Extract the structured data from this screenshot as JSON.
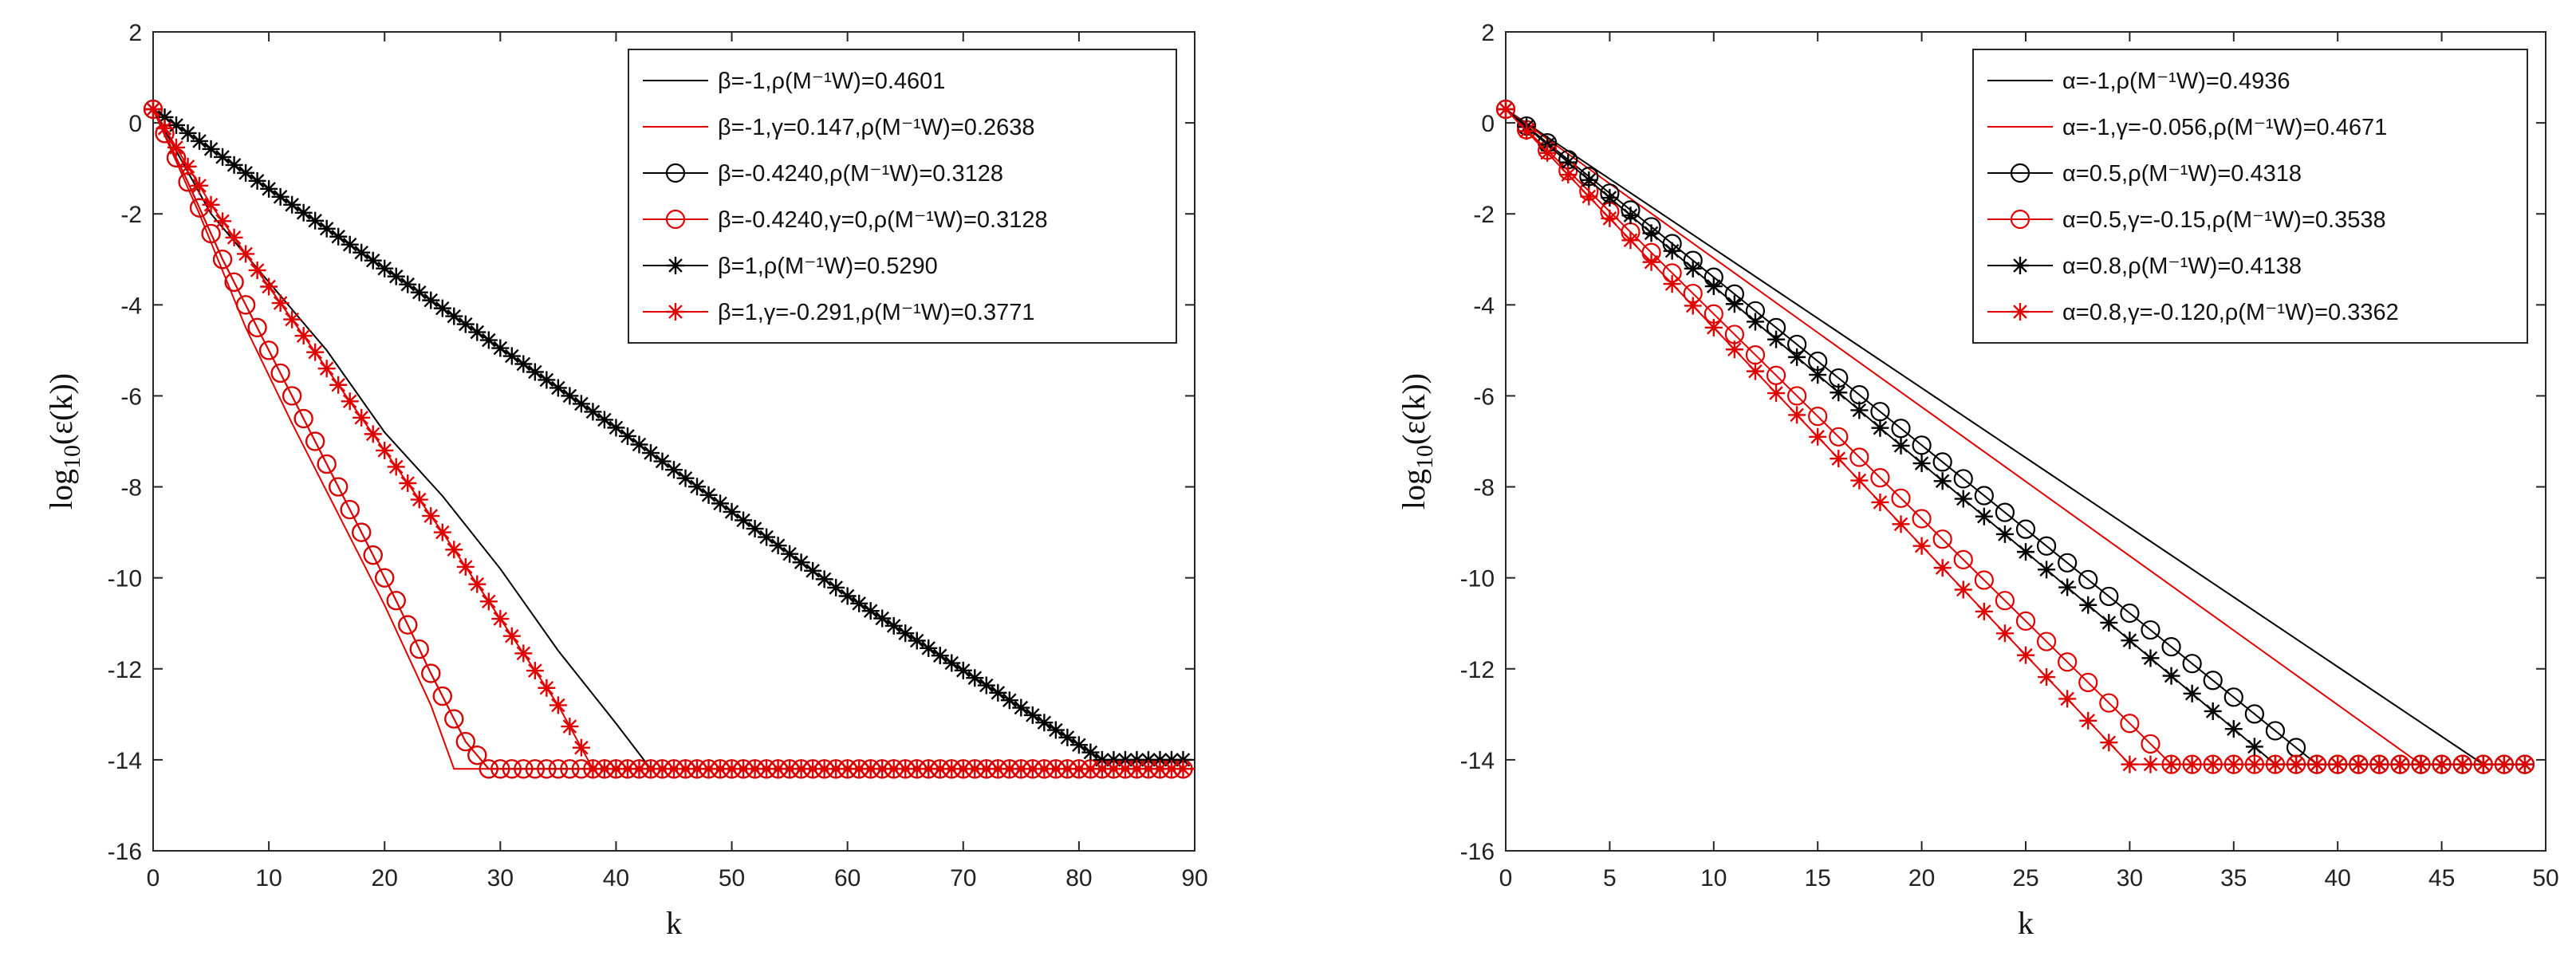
{
  "chart_data": [
    {
      "type": "line",
      "title": "",
      "xlabel": "k",
      "ylabel": "log10(ε(k))",
      "ylabel_main": "log",
      "ylabel_sub": "10",
      "ylabel_rest": "(ε(k))",
      "xlim": [
        0,
        90
      ],
      "ylim": [
        -16,
        2
      ],
      "xticks": [
        "0",
        "10",
        "20",
        "30",
        "40",
        "50",
        "60",
        "70",
        "80",
        "90"
      ],
      "yticks": [
        "2",
        "0",
        "-2",
        "-4",
        "-6",
        "-8",
        "-10",
        "-12",
        "-14",
        "-16"
      ],
      "legend_position": "top-right",
      "series": [
        {
          "name": "β=-1,ρ(M⁻¹W)=0.4601",
          "color": "#000000",
          "marker": "none",
          "points": [
            [
              0,
              0.3
            ],
            [
              5,
              -2
            ],
            [
              10,
              -3.5
            ],
            [
              15,
              -5
            ],
            [
              20,
              -6.8
            ],
            [
              25,
              -8.2
            ],
            [
              30,
              -9.8
            ],
            [
              35,
              -11.6
            ],
            [
              40,
              -13.2
            ],
            [
              43,
              -14.2
            ],
            [
              90,
              -14.2
            ]
          ]
        },
        {
          "name": "β=-1,γ=0.147,ρ(M⁻¹W)=0.2638",
          "color": "#e00000",
          "marker": "none",
          "points": [
            [
              0,
              0.3
            ],
            [
              4,
              -2
            ],
            [
              8,
              -4.5
            ],
            [
              12,
              -6.6
            ],
            [
              16,
              -8.6
            ],
            [
              20,
              -10.6
            ],
            [
              24,
              -12.8
            ],
            [
              26,
              -14.2
            ],
            [
              90,
              -14.2
            ]
          ]
        },
        {
          "name": "β=-0.4240,ρ(M⁻¹W)=0.3128",
          "color": "#000000",
          "marker": "circle",
          "points": [
            [
              0,
              0.3
            ],
            [
              3,
              -1.3
            ],
            [
              6,
              -3
            ],
            [
              9,
              -4.5
            ],
            [
              12,
              -6
            ],
            [
              15,
              -7.5
            ],
            [
              18,
              -9
            ],
            [
              21,
              -10.5
            ],
            [
              24,
              -12.1
            ],
            [
              27,
              -13.6
            ],
            [
              29,
              -14.2
            ],
            [
              90,
              -14.2
            ]
          ]
        },
        {
          "name": "β=-0.4240,γ=0,ρ(M⁻¹W)=0.3128",
          "color": "#e00000",
          "marker": "circle",
          "points": [
            [
              0,
              0.3
            ],
            [
              3,
              -1.3
            ],
            [
              6,
              -3
            ],
            [
              9,
              -4.5
            ],
            [
              12,
              -6
            ],
            [
              15,
              -7.5
            ],
            [
              18,
              -9
            ],
            [
              21,
              -10.5
            ],
            [
              24,
              -12.1
            ],
            [
              27,
              -13.6
            ],
            [
              29,
              -14.2
            ],
            [
              90,
              -14.2
            ]
          ]
        },
        {
          "name": "β=1,ρ(M⁻¹W)=0.5290",
          "color": "#000000",
          "marker": "star",
          "points": [
            [
              0,
              0.3
            ],
            [
              20,
              -3.2
            ],
            [
              40,
              -6.7
            ],
            [
              60,
              -10.4
            ],
            [
              82,
              -14.0
            ],
            [
              90,
              -14.0
            ]
          ]
        },
        {
          "name": "β=1,γ=-0.291,ρ(M⁻¹W)=0.3771",
          "color": "#e00000",
          "marker": "star",
          "points": [
            [
              0,
              0.3
            ],
            [
              5,
              -1.8
            ],
            [
              10,
              -3.6
            ],
            [
              15,
              -5.4
            ],
            [
              20,
              -7.2
            ],
            [
              25,
              -9.0
            ],
            [
              30,
              -10.9
            ],
            [
              35,
              -12.8
            ],
            [
              38,
              -14.2
            ],
            [
              90,
              -14.2
            ]
          ]
        }
      ]
    },
    {
      "type": "line",
      "title": "",
      "xlabel": "k",
      "ylabel": "log10(ε(k))",
      "ylabel_main": "log",
      "ylabel_sub": "10",
      "ylabel_rest": "(ε(k))",
      "xlim": [
        0,
        50
      ],
      "ylim": [
        -16,
        2
      ],
      "xticks": [
        "0",
        "5",
        "10",
        "15",
        "20",
        "25",
        "30",
        "35",
        "40",
        "45",
        "50"
      ],
      "yticks": [
        "2",
        "0",
        "-2",
        "-4",
        "-6",
        "-8",
        "-10",
        "-12",
        "-14",
        "-16"
      ],
      "legend_position": "top-right",
      "series": [
        {
          "name": "α=-1,ρ(M⁻¹W)=0.4936",
          "color": "#000000",
          "marker": "none",
          "points": [
            [
              0,
              0.3
            ],
            [
              47,
              -14.1
            ],
            [
              49,
              -14.1
            ]
          ]
        },
        {
          "name": "α=-1,γ=-0.056,ρ(M⁻¹W)=0.4671",
          "color": "#e00000",
          "marker": "none",
          "points": [
            [
              0,
              0.3
            ],
            [
              44,
              -14.1
            ],
            [
              49,
              -14.1
            ]
          ]
        },
        {
          "name": "α=0.5,ρ(M⁻¹W)=0.4318",
          "color": "#000000",
          "marker": "circle",
          "points": [
            [
              0,
              0.3
            ],
            [
              39,
              -14.1
            ],
            [
              49,
              -14.1
            ]
          ]
        },
        {
          "name": "α=0.5,γ=-0.15,ρ(M⁻¹W)=0.3538",
          "color": "#e00000",
          "marker": "circle",
          "points": [
            [
              0,
              0.3
            ],
            [
              32,
              -14.1
            ],
            [
              49,
              -14.1
            ]
          ]
        },
        {
          "name": "α=0.8,ρ(M⁻¹W)=0.4138",
          "color": "#000000",
          "marker": "star",
          "points": [
            [
              0,
              0.3
            ],
            [
              37,
              -14.1
            ],
            [
              49,
              -14.1
            ]
          ]
        },
        {
          "name": "α=0.8,γ=-0.120,ρ(M⁻¹W)=0.3362",
          "color": "#e00000",
          "marker": "star",
          "points": [
            [
              0,
              0.3
            ],
            [
              30,
              -14.1
            ],
            [
              49,
              -14.1
            ]
          ]
        }
      ]
    }
  ]
}
